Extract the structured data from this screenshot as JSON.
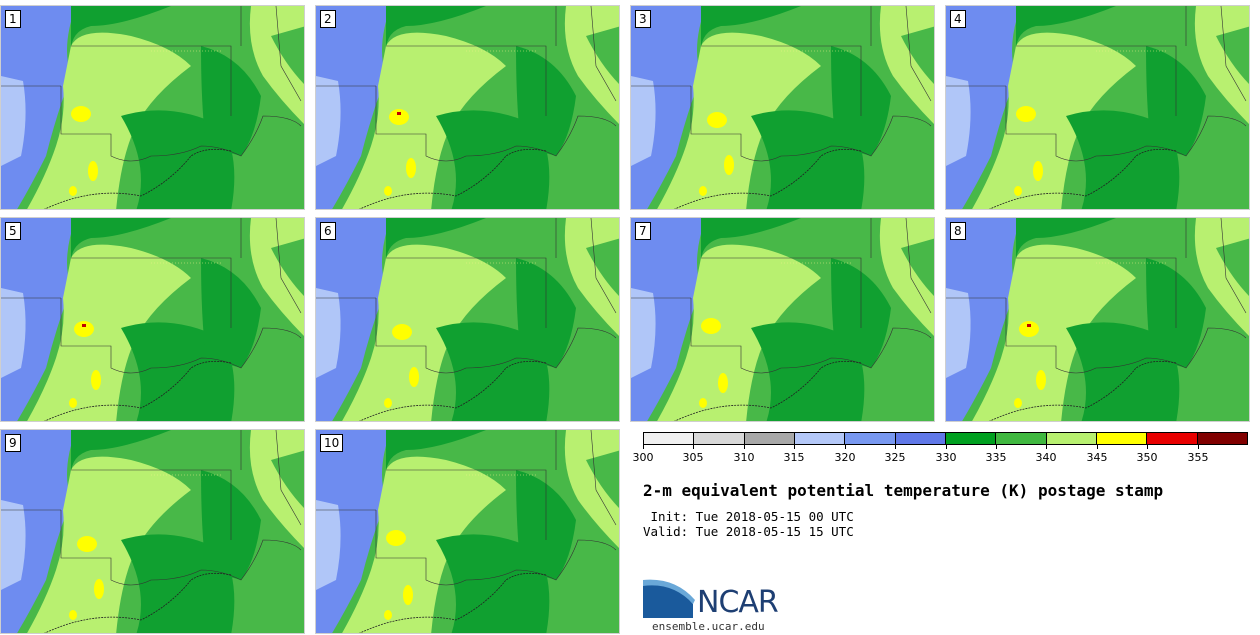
{
  "figure": {
    "title": "2-m equivalent potential temperature (K) postage stamp",
    "init_text": " Init: Tue 2018-05-15 00 UTC",
    "valid_text": "Valid: Tue 2018-05-15 15 UTC",
    "website": "ensemble.ucar.edu",
    "logo_text": "NCAR"
  },
  "members": [
    "1",
    "2",
    "3",
    "4",
    "5",
    "6",
    "7",
    "8",
    "9",
    "10"
  ],
  "colorbar": {
    "unit": "K",
    "tick_labels": [
      "300",
      "305",
      "310",
      "315",
      "320",
      "325",
      "330",
      "335",
      "340",
      "345",
      "350",
      "355"
    ],
    "colors": [
      "#f0f0f0",
      "#d8d8d8",
      "#a8a8a8",
      "#b4c8f8",
      "#7898f0",
      "#6078e8",
      "#00a020",
      "#40b840",
      "#b8f070",
      "#ffff00",
      "#e80000",
      "#800000"
    ]
  },
  "map_colors": {
    "cool": "#6e8cf0",
    "cold": "#b0c6f8",
    "dark_green": "#10a030",
    "mid_green": "#48b848",
    "light_green": "#b8f070",
    "yellow": "#ffff00",
    "red": "#c00000"
  }
}
